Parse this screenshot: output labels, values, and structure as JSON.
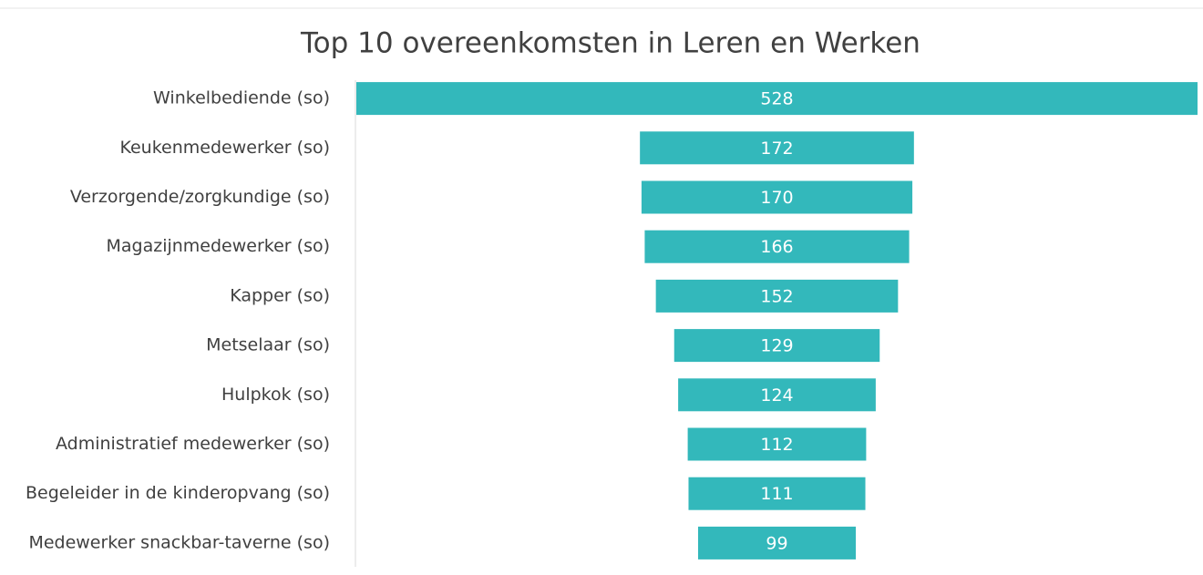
{
  "chart_data": {
    "type": "funnel",
    "title": "Top 10 overeenkomsten in Leren en Werken",
    "categories": [
      "Winkelbediende (so)",
      "Keukenmedewerker (so)",
      "Verzorgende/zorgkundige (so)",
      "Magazijnmedewerker (so)",
      "Kapper (so)",
      "Metselaar (so)",
      "Hulpkok (so)",
      "Administratief medewerker (so)",
      "Begeleider in de kinderopvang (so)",
      "Medewerker snackbar-taverne (so)"
    ],
    "values": [
      528,
      172,
      170,
      166,
      152,
      129,
      124,
      112,
      111,
      99
    ],
    "color": "#33b8bb"
  }
}
